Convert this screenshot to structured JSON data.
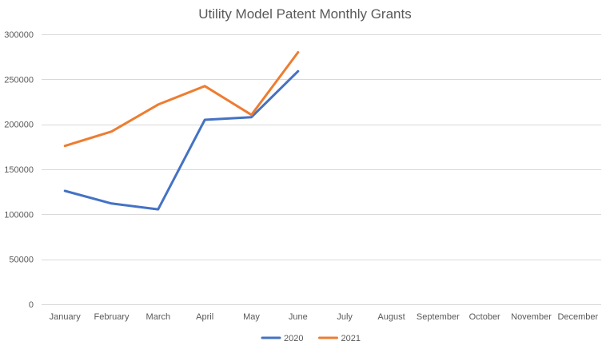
{
  "chart_data": {
    "type": "line",
    "title": "Utility Model Patent Monthly Grants",
    "xlabel": "",
    "ylabel": "",
    "categories": [
      "January",
      "February",
      "March",
      "April",
      "May",
      "June",
      "July",
      "August",
      "September",
      "October",
      "November",
      "December"
    ],
    "y_ticks": [
      0,
      50000,
      100000,
      150000,
      200000,
      250000,
      300000
    ],
    "y_tick_labels": [
      "0",
      "50000",
      "100000",
      "150000",
      "200000",
      "250000",
      "300000"
    ],
    "ylim": [
      0,
      300000
    ],
    "grid": true,
    "legend_position": "bottom",
    "series": [
      {
        "name": "2020",
        "color": "#4472C4",
        "values": [
          126000,
          112000,
          105500,
          205000,
          208000,
          259000,
          null,
          null,
          null,
          null,
          null,
          null
        ]
      },
      {
        "name": "2021",
        "color": "#ED7D31",
        "values": [
          176000,
          192000,
          222000,
          242500,
          210500,
          280000,
          null,
          null,
          null,
          null,
          null,
          null
        ]
      }
    ]
  }
}
